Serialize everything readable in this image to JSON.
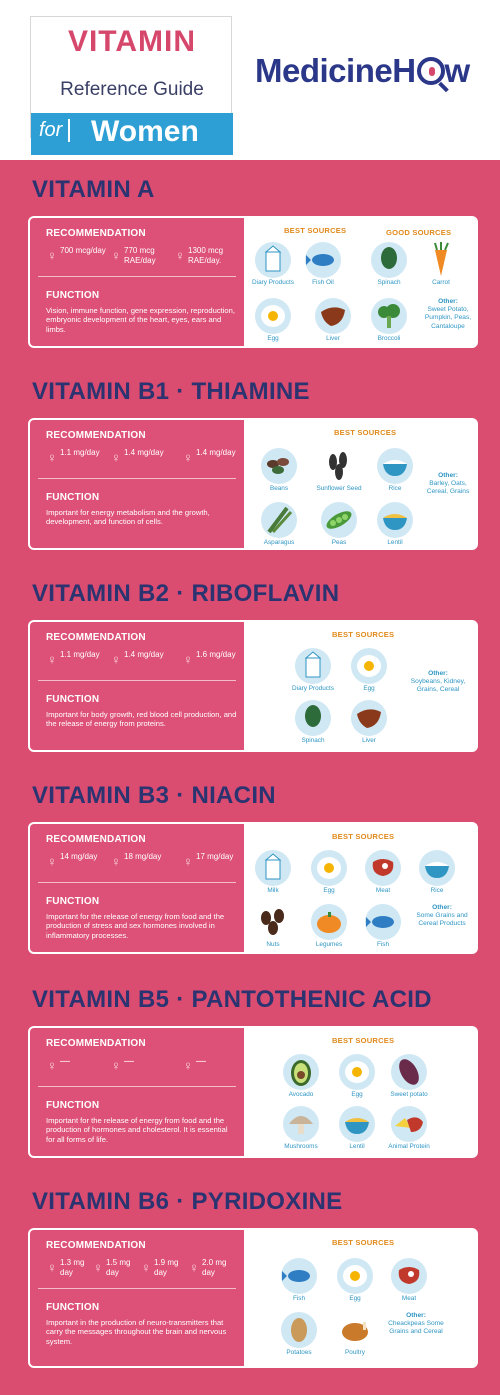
{
  "header": {
    "title_line1": "VITAMIN",
    "title_line2": "Reference Guide",
    "title_for": "for",
    "title_women": "Women",
    "brand_prefix": "Medicine",
    "brand_h": "H",
    "brand_w": "w"
  },
  "colors": {
    "pink": "#da4c70",
    "navy": "#2b3470",
    "blue": "#2d9fd5",
    "orange": "#e08a1d",
    "light_blue": "#cfe8f4"
  },
  "labels": {
    "recommendation": "RECOMMENDATION",
    "function": "FUNCTION",
    "best_sources": "BEST SOURCES",
    "good_sources": "GOOD SOURCES",
    "other": "Other:"
  },
  "sections": [
    {
      "title": "VITAMIN A",
      "rec": [
        "700 mcg/day",
        "770 mcg RAE/day",
        "1300 mcg RAE/day."
      ],
      "function": "Vision, immune function, gene expression, reproduction, embryonic development of the heart, eyes, ears and limbs.",
      "foods": [
        "Diary Products",
        "Fish Oil",
        "Spinach",
        "Carrot",
        "Egg",
        "Liver",
        "Broccoli"
      ],
      "other": "Sweet Potato, Pumpkin, Peas, Cantaloupe"
    },
    {
      "title": "VITAMIN B1 · THIAMINE",
      "rec": [
        "1.1 mg/day",
        "1.4 mg/day",
        "1.4 mg/day"
      ],
      "function": "Important for energy metabolism and the growth, development, and function of cells.",
      "foods": [
        "Beans",
        "Sunflower Seed",
        "Rice",
        "Asparagus",
        "Peas",
        "Lentil"
      ],
      "other": "Barley, Oats, Cereal, Grains"
    },
    {
      "title": "VITAMIN B2 · RIBOFLAVIN",
      "rec": [
        "1.1 mg/day",
        "1.4 mg/day",
        "1.6 mg/day"
      ],
      "function": "Important for body growth, red blood cell production, and the release of energy from proteins.",
      "foods": [
        "Diary Products",
        "Egg",
        "Spinach",
        "Liver"
      ],
      "other": "Soybeans, Kidney, Grains, Cereal"
    },
    {
      "title": "VITAMIN B3 · NIACIN",
      "rec": [
        "14 mg/day",
        "18 mg/day",
        "17 mg/day"
      ],
      "function": "Important for the release of energy from food and the production of stress and sex hormones involved in inflammatory processes.",
      "foods": [
        "Milk",
        "Egg",
        "Meat",
        "Rice",
        "Nuts",
        "Legumes",
        "Fish"
      ],
      "other": "Some Grains and Cereal Products"
    },
    {
      "title": "VITAMIN B5 · PANTOTHENIC ACID",
      "rec": [
        "—",
        "—",
        "—"
      ],
      "function": "Important for the release of energy from food and the production of hormones and cholesterol. It is essential for all forms of life.",
      "foods": [
        "Avocado",
        "Egg",
        "Sweet potato",
        "Mushrooms",
        "Lentil",
        "Animal Protein"
      ],
      "other": ""
    },
    {
      "title": "VITAMIN B6 · PYRIDOXINE",
      "rec": [
        "1.3 mg day",
        "1.5 mg day",
        "1.9 mg day",
        "2.0 mg day"
      ],
      "function": "Important in the production of neuro-transmitters that carry the messages throughout the brain and nervous system.",
      "foods": [
        "Fish",
        "Egg",
        "Meat",
        "Potatoes",
        "Poultry"
      ],
      "other": "Cheackpeas Some Grains and Cereal"
    }
  ]
}
